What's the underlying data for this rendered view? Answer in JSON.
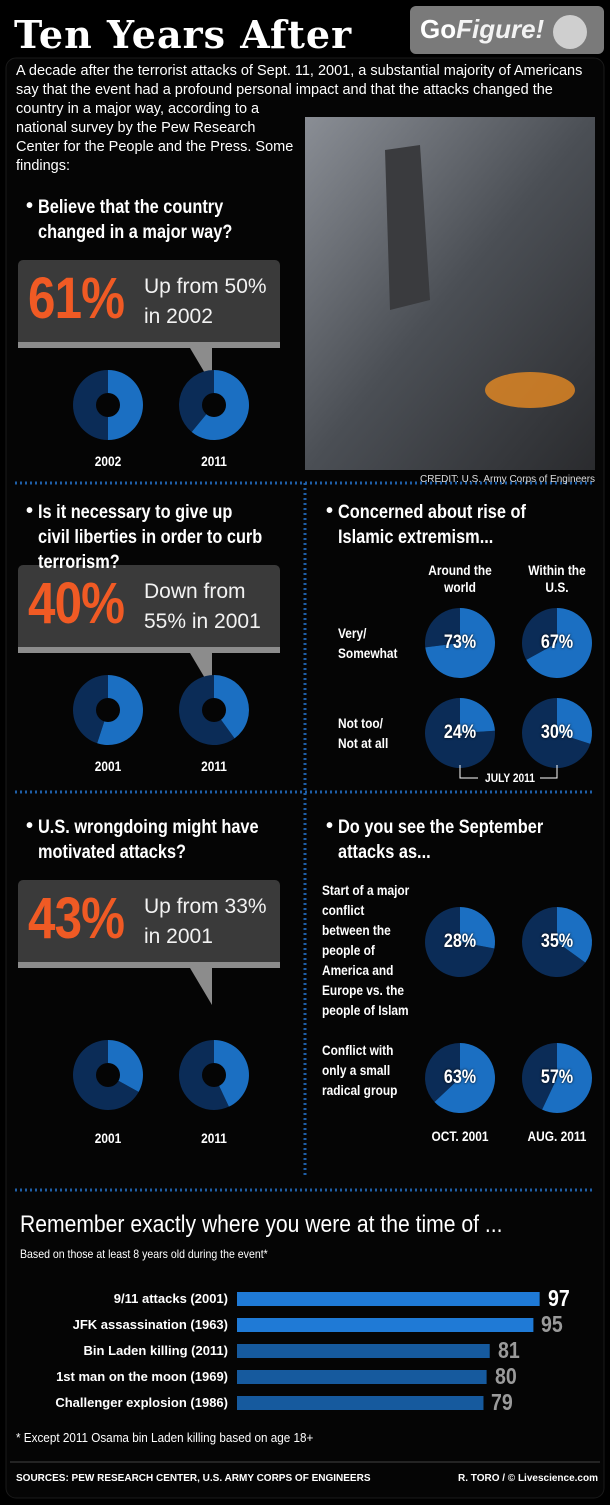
{
  "title": "Ten Years After",
  "logo": {
    "go": "Go",
    "figure": "Figure!"
  },
  "intro": "A decade after the terrorist attacks of Sept. 11, 2001, a substantial majority of Americans say that the event had a profound personal impact and that the attacks changed the country in a major way, according to a national survey by the Pew Research Center for the People and the Press. Some findings:",
  "photo_credit": "CREDIT: U.S. Army Corps of Engineers",
  "chart_data": [
    {
      "type": "pie",
      "title": "Believe that the country changed in a major way?",
      "callout_label": "61%",
      "callout_text": "Up from 50% in 2002",
      "categories": [
        "2002",
        "2011"
      ],
      "values": [
        50,
        61
      ],
      "color": "#1b6fc2",
      "rest_color": "#0b2c57"
    },
    {
      "type": "pie",
      "title": "Is it necessary to give up civil liberties in order to curb terrorism?",
      "callout_label": "40%",
      "callout_text": "Down from 55% in 2001",
      "categories": [
        "2001",
        "2011"
      ],
      "values": [
        55,
        40
      ],
      "color": "#1b6fc2",
      "rest_color": "#0b2c57"
    },
    {
      "type": "pie",
      "title": "U.S. wrongdoing might have motivated attacks?",
      "callout_label": "43%",
      "callout_text": "Up from 33% in 2001",
      "categories": [
        "2001",
        "2011"
      ],
      "values": [
        33,
        43
      ],
      "color": "#1b6fc2",
      "rest_color": "#0b2c57"
    },
    {
      "type": "pie-grid",
      "title": "Concerned about rise of Islamic extremism...",
      "categories": [
        "Around the world",
        "Within the U.S."
      ],
      "note": "JULY 2011",
      "color": "#1b6fc2",
      "rest_color": "#0b2c57",
      "series": [
        {
          "name": "Very/ Somewhat",
          "values": [
            73,
            67
          ],
          "value_labels": [
            "73%",
            "67%"
          ]
        },
        {
          "name": "Not too/ Not at all",
          "values": [
            24,
            30
          ],
          "value_labels": [
            "24%",
            "30%"
          ]
        }
      ]
    },
    {
      "type": "pie-grid",
      "title": "Do you see the September attacks as...",
      "categories": [
        "OCT. 2001",
        "AUG. 2011"
      ],
      "color": "#1b6fc2",
      "rest_color": "#0b2c57",
      "series": [
        {
          "name": "Start of a major conflict between the people of America and Europe vs. the people of Islam",
          "values": [
            28,
            35
          ],
          "value_labels": [
            "28%",
            "35%"
          ]
        },
        {
          "name": "Conflict with only a small radical group",
          "values": [
            63,
            57
          ],
          "value_labels": [
            "63%",
            "57%"
          ]
        }
      ]
    },
    {
      "type": "hbar",
      "title": "Remember exactly where you were at the time of ...",
      "subtitle": "Based on those at least 8 years old during the event*",
      "categories": [
        "9/11 attacks (2001)",
        "JFK assassination (1963)",
        "Bin Laden killing (2011)",
        "1st man on the moon (1969)",
        "Challenger explosion (1986)"
      ],
      "values": [
        97,
        95,
        81,
        80,
        79
      ],
      "colors": [
        "#1f7ad6",
        "#1f7ad6",
        "#165a9e",
        "#165a9e",
        "#165a9e"
      ],
      "label_colors": [
        "#ffffff",
        "#9a9a9a",
        "#9a9a9a",
        "#9a9a9a",
        "#9a9a9a"
      ]
    }
  ],
  "footnote": "* Except 2011 Osama bin Laden killing based on age 18+",
  "sources": "SOURCES: PEW RESEARCH CENTER, U.S. ARMY CORPS OF ENGINEERS",
  "credit": "R. TORO / © Livescience.com"
}
